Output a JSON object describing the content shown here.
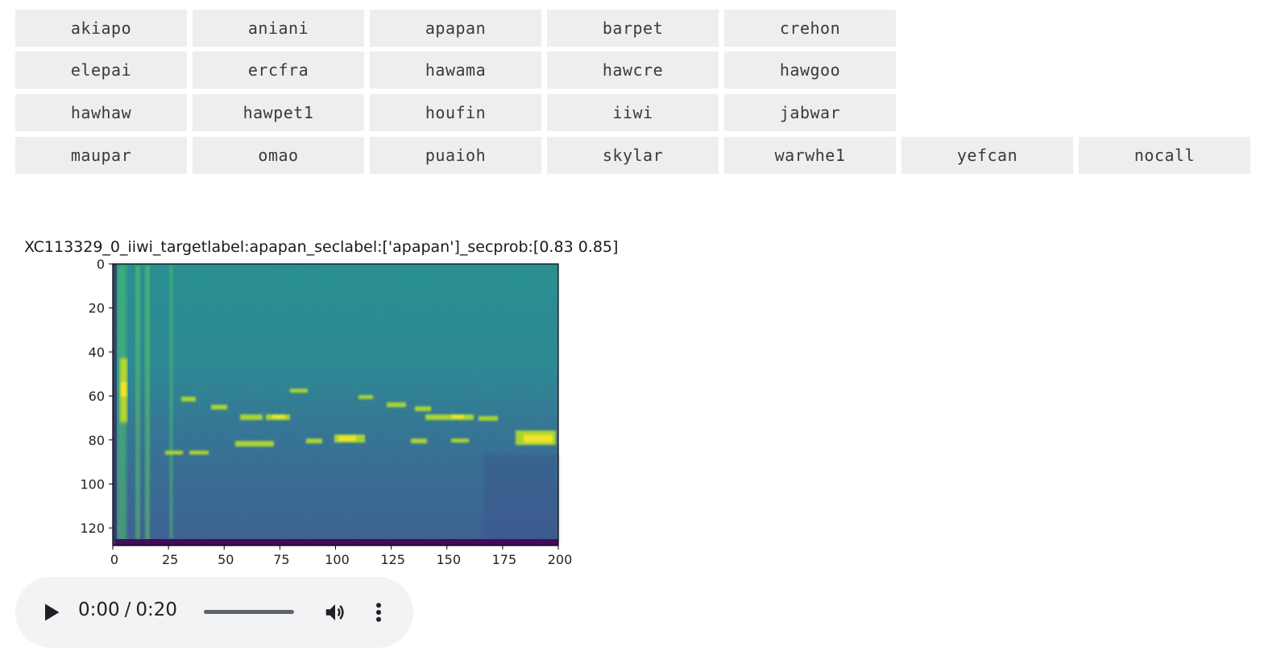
{
  "label_buttons": {
    "rows": [
      [
        "akiapo",
        "aniani",
        "apapan",
        "barpet",
        "crehon"
      ],
      [
        "elepai",
        "ercfra",
        "hawama",
        "hawcre",
        "hawgoo"
      ],
      [
        "hawhaw",
        "hawpet1",
        "houfin",
        "iiwi",
        "jabwar"
      ],
      [
        "maupar",
        "omao",
        "puaioh",
        "skylar",
        "warwhe1",
        "yefcan",
        "nocall"
      ]
    ]
  },
  "plot": {
    "title": "XC113329_0_iiwi_targetlabel:apapan_seclabel:['apapan']_secprob:[0.83 0.85]"
  },
  "chart_data": {
    "type": "heatmap",
    "title": "XC113329_0_iiwi_targetlabel:apapan_seclabel:['apapan']_secprob:[0.83 0.85]",
    "xlabel": "",
    "ylabel": "",
    "xlim": [
      0,
      200
    ],
    "ylim": [
      128,
      0
    ],
    "x_ticks": [
      0,
      25,
      50,
      75,
      100,
      125,
      150,
      175,
      200
    ],
    "y_ticks": [
      0,
      20,
      40,
      60,
      80,
      100,
      120
    ],
    "colormap": "viridis",
    "grid": false
  },
  "audio": {
    "current_time": "0:00",
    "separator": "/",
    "duration": "0:20",
    "progress": 0
  },
  "colors": {
    "button_bg": "#eeeeee",
    "button_text": "#3a3a3a",
    "player_bg": "#f1f3f4",
    "player_icon": "#202124"
  },
  "icons": {
    "play": "play-icon",
    "volume": "volume-icon",
    "menu": "more-vert-icon"
  }
}
